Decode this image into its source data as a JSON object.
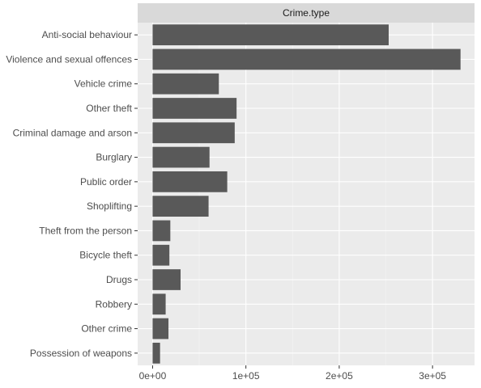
{
  "chart_data": {
    "type": "bar",
    "orientation": "horizontal",
    "facet_label": "Crime.type",
    "categories": [
      "Anti-social behaviour",
      "Violence and sexual offences",
      "Vehicle crime",
      "Other theft",
      "Criminal damage and arson",
      "Burglary",
      "Public order",
      "Shoplifting",
      "Theft from the person",
      "Bicycle theft",
      "Drugs",
      "Robbery",
      "Other crime",
      "Possession of weapons"
    ],
    "values": [
      253000,
      330000,
      71000,
      90000,
      88000,
      61000,
      80000,
      60000,
      19000,
      18000,
      30000,
      14000,
      17000,
      8000
    ],
    "xlim": [
      -16000,
      345000
    ],
    "xticks": [
      0,
      100000,
      200000,
      300000
    ],
    "xtick_labels": [
      "0e+00",
      "1e+05",
      "2e+05",
      "3e+05"
    ],
    "grid": true,
    "colors": {
      "bar": "#595959",
      "panel": "#ebebeb",
      "strip": "#d9d9d9",
      "grid_major": "#ffffff",
      "grid_minor": "#f5f5f5",
      "tick": "#333333"
    }
  }
}
